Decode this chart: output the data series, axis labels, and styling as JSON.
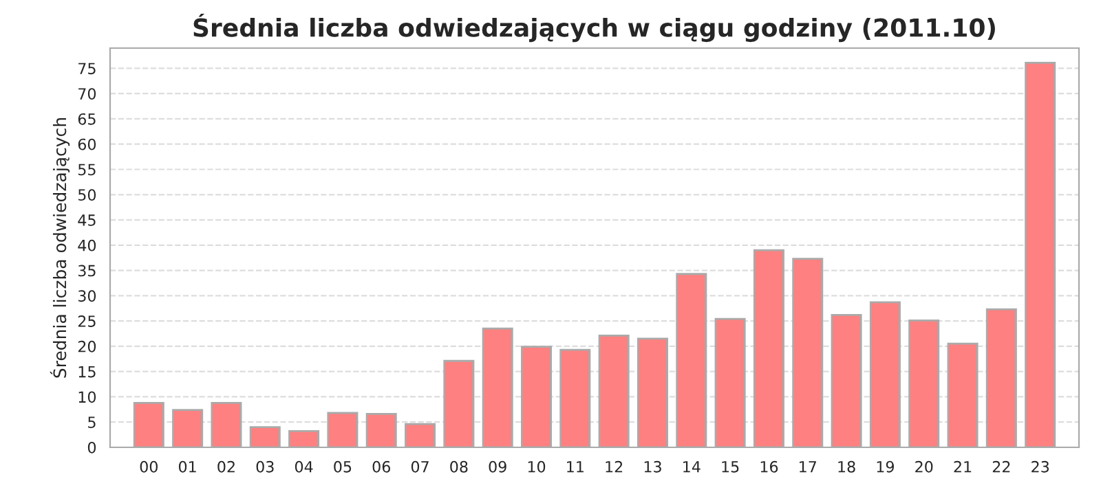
{
  "chart_data": {
    "type": "bar",
    "title": "Średnia liczba odwiedzających w ciągu godziny (2011.10)",
    "ylabel": "Średnia liczba odwiedzających",
    "categories": [
      "00",
      "01",
      "02",
      "03",
      "04",
      "05",
      "06",
      "07",
      "08",
      "09",
      "10",
      "11",
      "12",
      "13",
      "14",
      "15",
      "16",
      "17",
      "18",
      "19",
      "20",
      "21",
      "22",
      "23"
    ],
    "values": [
      8.8,
      7.4,
      8.8,
      4.0,
      3.2,
      6.8,
      6.6,
      4.6,
      17.1,
      23.5,
      19.9,
      19.3,
      22.1,
      21.5,
      34.3,
      25.4,
      39.0,
      37.3,
      26.2,
      28.7,
      25.1,
      20.5,
      27.3,
      76.1
    ],
    "color": "#ff8080",
    "ylim": [
      0,
      79
    ],
    "yticks": [
      0,
      5,
      10,
      15,
      20,
      25,
      30,
      35,
      40,
      45,
      50,
      55,
      60,
      65,
      70,
      75
    ],
    "grid": "y"
  }
}
